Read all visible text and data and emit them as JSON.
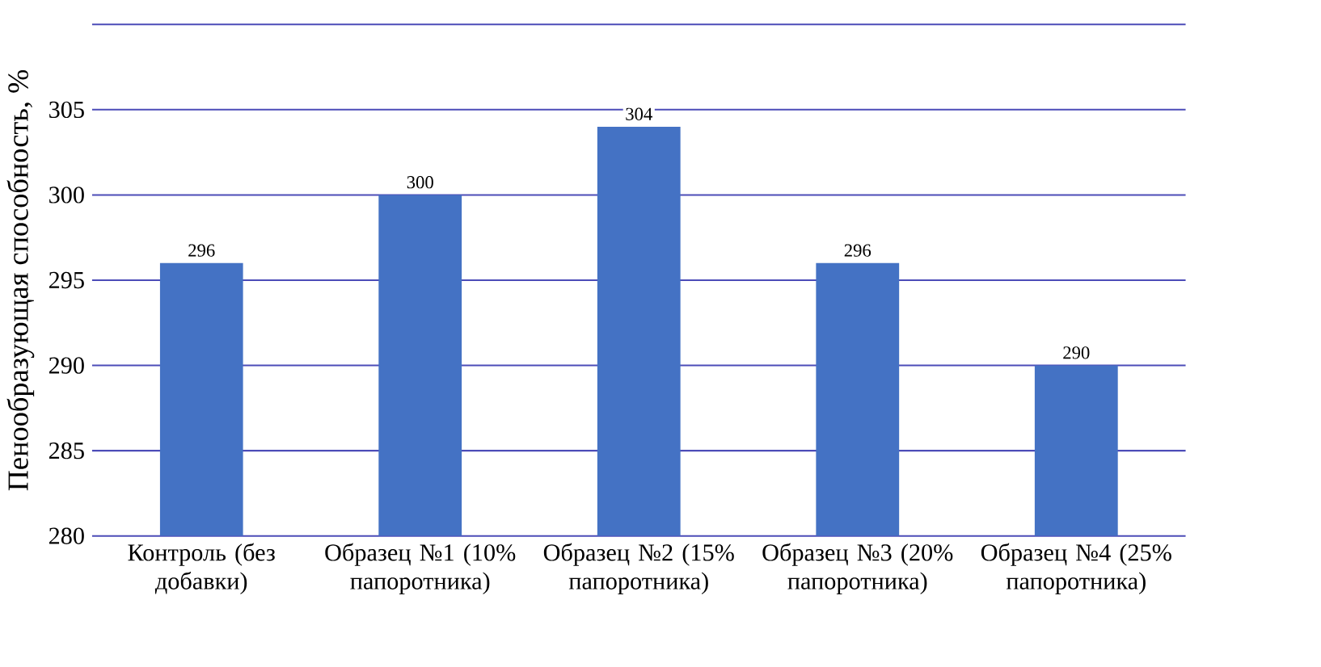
{
  "chart_data": {
    "type": "bar",
    "ylabel": "Пенообразующая способность, %",
    "categories": [
      "Контроль (без добавки)",
      "Образец №1 (10% папоротника)",
      "Образец №2 (15% папоротника)",
      "Образец №3 (20% папоротника)",
      "Образец №4 (25% папоротника)"
    ],
    "values": [
      296,
      300,
      304,
      296,
      290
    ],
    "color": "#4472c4",
    "ylim": [
      280,
      310
    ],
    "yticks": [
      280,
      285,
      290,
      295,
      300,
      305,
      {
        "value": 310,
        "label": null
      }
    ],
    "grid": "y",
    "data_labels": true
  }
}
